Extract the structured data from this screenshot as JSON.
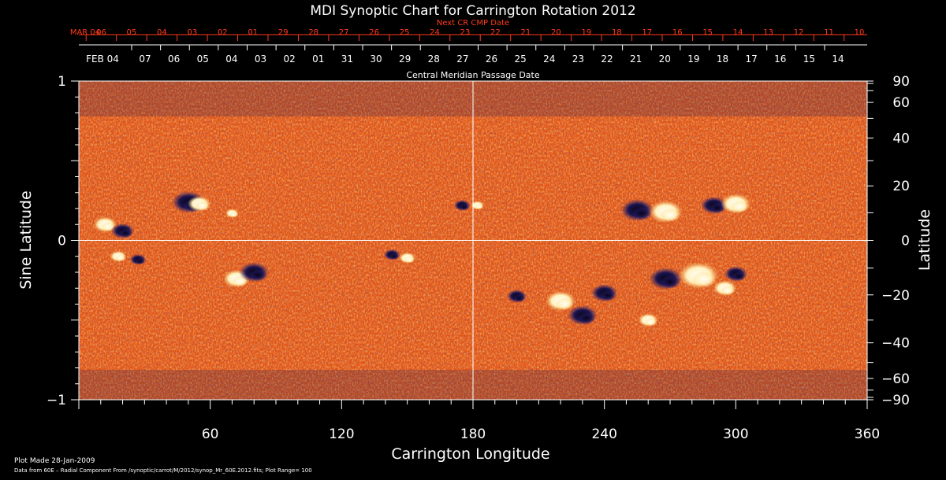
{
  "chart_data": {
    "type": "heatmap",
    "title": "MDI Synoptic Chart for Carrington Rotation 2012",
    "next_cr_label": "Next CR CMP Date",
    "cmp_axis_label": "Central Meridian Passage Date",
    "top_dates_red": [
      "MAR 04",
      "06",
      "05",
      "04",
      "03",
      "02",
      "01",
      "29",
      "28",
      "27",
      "26",
      "25",
      "24",
      "23",
      "22",
      "21",
      "20",
      "19",
      "18",
      "17",
      "16",
      "15",
      "14",
      "13",
      "12",
      "11",
      "10"
    ],
    "top_dates_white": [
      "FEB 04",
      "07",
      "06",
      "05",
      "04",
      "03",
      "02",
      "01",
      "31",
      "30",
      "29",
      "28",
      "27",
      "26",
      "25",
      "24",
      "23",
      "22",
      "21",
      "20",
      "19",
      "18",
      "17",
      "16",
      "15",
      "14"
    ],
    "xlabel": "Carrington Longitude",
    "ylabel_left": "Sine Latitude",
    "ylabel_right": "Latitude",
    "xlim": [
      0,
      360
    ],
    "ylim": [
      -1,
      1
    ],
    "x_ticks": [
      60,
      120,
      180,
      240,
      300,
      360
    ],
    "y_ticks_left": [
      "1",
      "0",
      "−1"
    ],
    "y_ticks_right": [
      90,
      60,
      40,
      20,
      0,
      -20,
      -40,
      -60,
      -90
    ],
    "footer_line1": "Plot Made 28-Jan-2009",
    "footer_line2": "Data from 60E – Radial Component From /synoptic/carrot/M/2012/synop_Mr_60E.2012.fits; Plot Range=  100",
    "colors": {
      "background_field": "#e2571a",
      "positive_polarity": "#ffffff",
      "negative_polarity": "#1a1450",
      "red_dates": "#ff3a1a",
      "axes": "#ffffff"
    },
    "active_regions": [
      {
        "lon": 50,
        "sinlat": 0.24,
        "polarity": "negative",
        "size": 1.0
      },
      {
        "lon": 55,
        "sinlat": 0.23,
        "polarity": "positive",
        "size": 0.7
      },
      {
        "lon": 12,
        "sinlat": 0.1,
        "polarity": "positive",
        "size": 0.7
      },
      {
        "lon": 20,
        "sinlat": 0.06,
        "polarity": "negative",
        "size": 0.7
      },
      {
        "lon": 70,
        "sinlat": 0.17,
        "polarity": "positive",
        "size": 0.4
      },
      {
        "lon": 18,
        "sinlat": -0.1,
        "polarity": "positive",
        "size": 0.5
      },
      {
        "lon": 27,
        "sinlat": -0.12,
        "polarity": "negative",
        "size": 0.5
      },
      {
        "lon": 72,
        "sinlat": -0.24,
        "polarity": "positive",
        "size": 0.8
      },
      {
        "lon": 80,
        "sinlat": -0.2,
        "polarity": "negative",
        "size": 0.9
      },
      {
        "lon": 150,
        "sinlat": -0.11,
        "polarity": "positive",
        "size": 0.5
      },
      {
        "lon": 143,
        "sinlat": -0.09,
        "polarity": "negative",
        "size": 0.5
      },
      {
        "lon": 175,
        "sinlat": 0.22,
        "polarity": "negative",
        "size": 0.5
      },
      {
        "lon": 182,
        "sinlat": 0.22,
        "polarity": "positive",
        "size": 0.4
      },
      {
        "lon": 200,
        "sinlat": -0.35,
        "polarity": "negative",
        "size": 0.6
      },
      {
        "lon": 220,
        "sinlat": -0.38,
        "polarity": "positive",
        "size": 0.9
      },
      {
        "lon": 230,
        "sinlat": -0.47,
        "polarity": "negative",
        "size": 0.9
      },
      {
        "lon": 240,
        "sinlat": -0.33,
        "polarity": "negative",
        "size": 0.8
      },
      {
        "lon": 255,
        "sinlat": 0.19,
        "polarity": "negative",
        "size": 1.0
      },
      {
        "lon": 268,
        "sinlat": 0.18,
        "polarity": "positive",
        "size": 1.0
      },
      {
        "lon": 290,
        "sinlat": 0.22,
        "polarity": "negative",
        "size": 0.8
      },
      {
        "lon": 300,
        "sinlat": 0.23,
        "polarity": "positive",
        "size": 0.9
      },
      {
        "lon": 268,
        "sinlat": -0.24,
        "polarity": "negative",
        "size": 1.0
      },
      {
        "lon": 283,
        "sinlat": -0.22,
        "polarity": "positive",
        "size": 1.2
      },
      {
        "lon": 295,
        "sinlat": -0.3,
        "polarity": "positive",
        "size": 0.7
      },
      {
        "lon": 300,
        "sinlat": -0.21,
        "polarity": "negative",
        "size": 0.7
      },
      {
        "lon": 260,
        "sinlat": -0.5,
        "polarity": "positive",
        "size": 0.6
      }
    ]
  }
}
